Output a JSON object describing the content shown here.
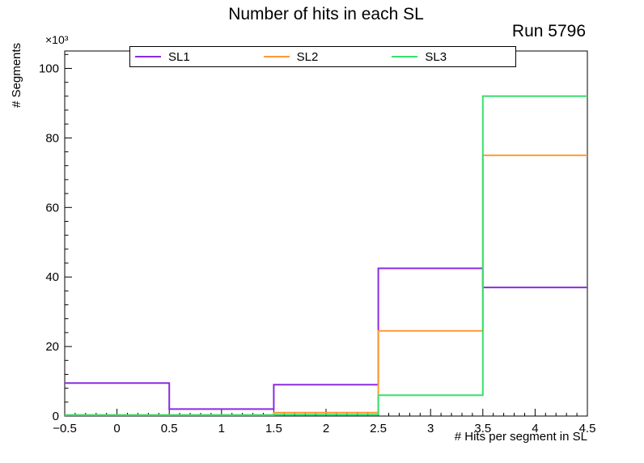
{
  "chart_data": {
    "type": "line",
    "subtype": "step-histogram",
    "title": "Number of hits in each SL",
    "annotation": "Run 5796",
    "xlabel": "# Hits per segment in SL",
    "ylabel": "# Segments",
    "y_scale_label": "×10³",
    "y_values_unit": 1000,
    "xlim": [
      -0.5,
      4.5
    ],
    "ylim": [
      0,
      105
    ],
    "grid": false,
    "legend_position": "top-center",
    "bin_edges": [
      -0.5,
      0.5,
      1.5,
      2.5,
      3.5,
      4.5
    ],
    "series": [
      {
        "name": "SL1",
        "color": "#8a2be2",
        "values": [
          9.5,
          2,
          9,
          42.5,
          37
        ]
      },
      {
        "name": "SL2",
        "color": "#ff9933",
        "values": [
          0.3,
          0.3,
          1,
          24.5,
          75
        ]
      },
      {
        "name": "SL3",
        "color": "#37e06e",
        "values": [
          0.3,
          0.3,
          0.4,
          6,
          92
        ]
      }
    ],
    "x_ticks": [
      -0.5,
      0,
      0.5,
      1,
      1.5,
      2,
      2.5,
      3,
      3.5,
      4,
      4.5
    ],
    "x_tick_labels": [
      "−0.5",
      "0",
      "0.5",
      "1",
      "1.5",
      "2",
      "2.5",
      "3",
      "3.5",
      "4",
      "4.5"
    ],
    "y_ticks": [
      0,
      20,
      40,
      60,
      80,
      100
    ],
    "y_tick_labels": [
      "0",
      "20",
      "40",
      "60",
      "80",
      "100"
    ]
  }
}
